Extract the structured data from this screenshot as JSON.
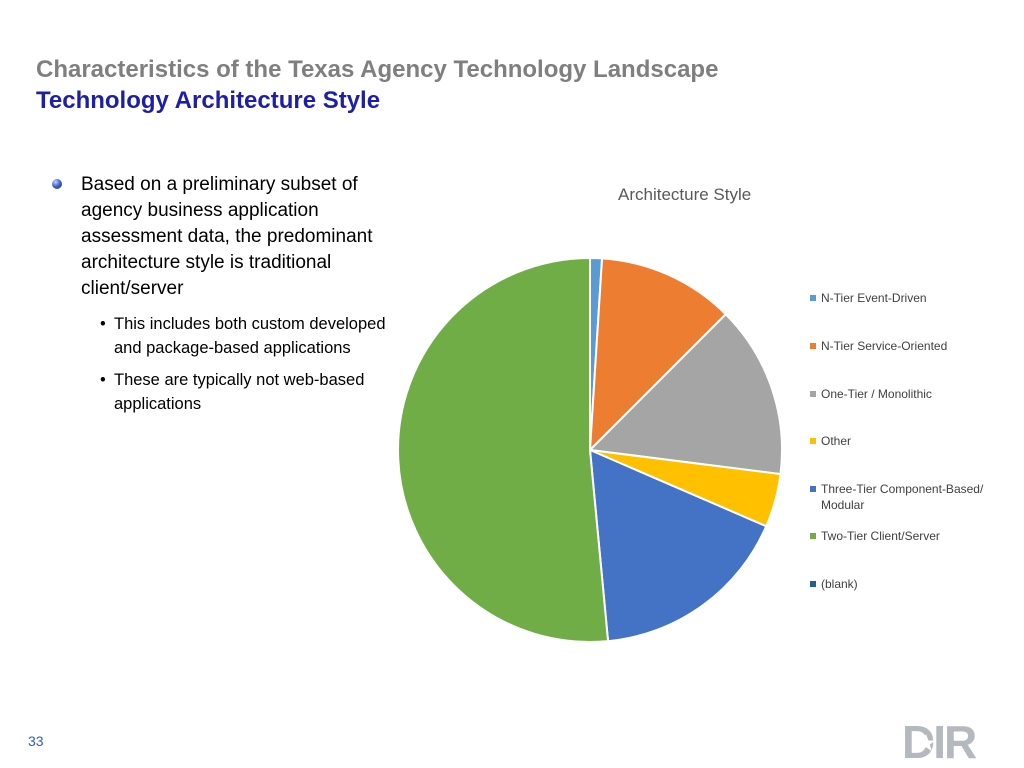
{
  "slide": {
    "title": "Characteristics of the Texas Agency Technology Landscape",
    "subtitle": "Technology Architecture Style",
    "page_number": "33",
    "bullet": {
      "text": "Based on a preliminary subset of agency business application assessment data, the predominant architecture style is traditional client/server",
      "sub_bullets": [
        "This includes both custom developed and package-based applications",
        "These are typically not web-based applications"
      ]
    },
    "sub_bullet_glyph": "•",
    "logo_text": "DIR",
    "logo_icon": "texas-star-icon"
  },
  "chart_data": {
    "type": "pie",
    "title": "Architecture Style",
    "legend_position": "right",
    "slices": [
      {
        "label": "N-Tier Event-Driven",
        "value": 1,
        "color": "#5b9bd5"
      },
      {
        "label": "N-Tier Service-Oriented",
        "value": 11.5,
        "color": "#ed7d31"
      },
      {
        "label": "One-Tier / Monolithic",
        "value": 14.5,
        "color": "#a5a5a5"
      },
      {
        "label": "Other",
        "value": 4.5,
        "color": "#ffc000"
      },
      {
        "label": "Three-Tier Component-Based/ Modular",
        "value": 17,
        "color": "#4472c4"
      },
      {
        "label": "Two-Tier Client/Server",
        "value": 51.5,
        "color": "#70ad47"
      },
      {
        "label": "(blank)",
        "value": 0,
        "color": "#255e91"
      }
    ]
  }
}
